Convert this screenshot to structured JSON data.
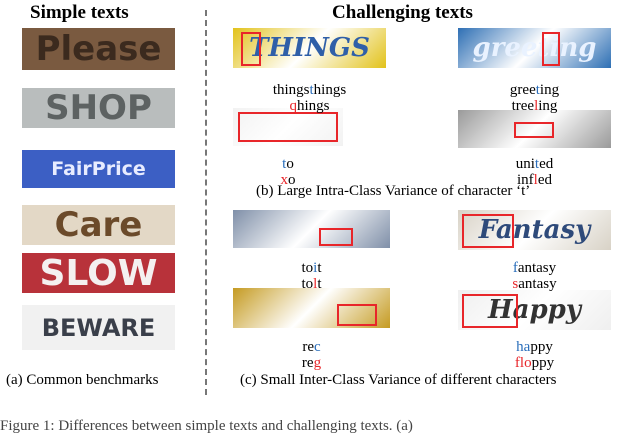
{
  "headers": {
    "simple": "Simple texts",
    "challenging": "Challenging texts"
  },
  "simple_images": [
    {
      "text": "Please",
      "bg": "#7a5a40",
      "fg": "#3b2a1e"
    },
    {
      "text": "SHOP",
      "bg": "#b9bdbd",
      "fg": "#5d6262"
    },
    {
      "text": "FairPrice",
      "bg": "#3c5fc4",
      "fg": "#e8ecff"
    },
    {
      "text": "Care",
      "bg": "#e3d8c6",
      "fg": "#6b4a2a"
    },
    {
      "text": "SLOW",
      "bg": "#b8323a",
      "fg": "#f4f0f0"
    },
    {
      "text": "BEWARE",
      "bg": "#f1f1f1",
      "fg": "#3a3f4a"
    }
  ],
  "challenging": [
    {
      "image_text": "THINGS",
      "bg": "#e2c21a",
      "fg": "#2f5fa8",
      "truth": [
        {
          "text": "",
          "color": "#000000"
        }
      ],
      "pred": []
    },
    {
      "image_text": "greeting",
      "bg": "#2e6fb4",
      "fg": "#e9f2ff",
      "truth": [],
      "pred": []
    },
    {
      "bg": "#f2f2f2",
      "fg": "#222a4a",
      "truth": [],
      "pred": []
    },
    {
      "bg": "#9a9a9a",
      "fg": "#dddddd",
      "truth": [],
      "pred": []
    },
    {
      "bg": "#7f8fa8",
      "fg": "#a0562c",
      "truth": [],
      "pred": []
    },
    {
      "image_text": "Fantasy",
      "bg": "#d8d2c6",
      "fg": "#2e4a7a",
      "truth": [],
      "pred": []
    },
    {
      "bg": "#c59b22",
      "fg": "#8a6410",
      "truth": [],
      "pred": []
    },
    {
      "image_text": "Happy",
      "bg": "#efefef",
      "fg": "#333333",
      "truth": [],
      "pred": []
    }
  ],
  "captions": {
    "a": "(a) Common benchmarks",
    "b": "(b) Large Intra-Class Variance of character ‘t’",
    "c": "(c) Small Inter-Class Variance of different characters"
  },
  "figure_caption": "Figure 1: Differences between simple texts and challenging texts. (a)"
}
